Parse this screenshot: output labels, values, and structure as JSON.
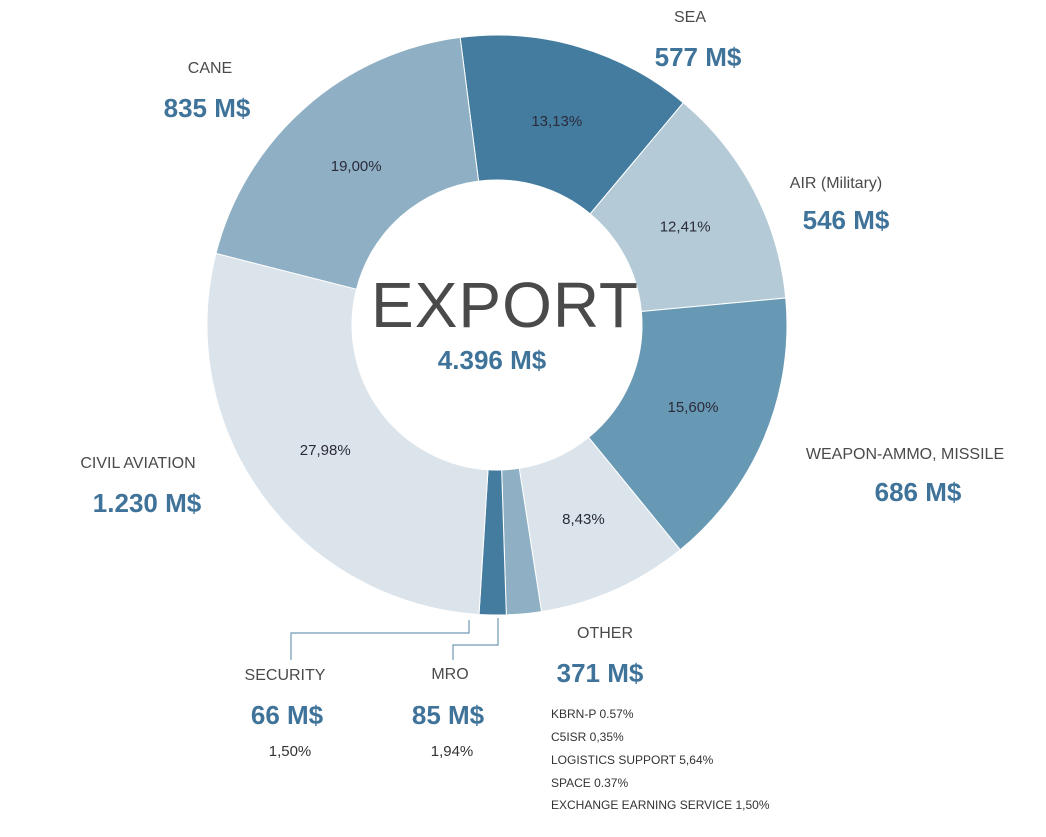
{
  "chart_data": {
    "type": "pie",
    "center_title": "EXPORT",
    "center_value": "4.396 M$",
    "slices": [
      {
        "name": "SEA",
        "value_label": "577 M$",
        "pct_label": "13,13%",
        "percent": 13.13,
        "color": "#447c9f"
      },
      {
        "name": "AIR (Military)",
        "value_label": "546 M$",
        "pct_label": "12,41%",
        "percent": 12.41,
        "color": "#b4cbd7"
      },
      {
        "name": "WEAPON-AMMO, MISSILE",
        "value_label": "686 M$",
        "pct_label": "15,60%",
        "percent": 15.6,
        "color": "#6899b4"
      },
      {
        "name": "OTHER",
        "value_label": "371 M$",
        "pct_label": "8,43%",
        "percent": 8.43,
        "color": "#dbe4eb"
      },
      {
        "name": "MRO",
        "value_label": "85 M$",
        "pct_label": "1,94%",
        "percent": 1.94,
        "color": "#8fb0c4"
      },
      {
        "name": "SECURITY",
        "value_label": "66 M$",
        "pct_label": "1,50%",
        "percent": 1.5,
        "color": "#447c9f"
      },
      {
        "name": "CIVIL AVIATION",
        "value_label": "1.230 M$",
        "pct_label": "27,98%",
        "percent": 27.98,
        "color": "#dbe4eb"
      },
      {
        "name": "CANE",
        "value_label": "835 M$",
        "pct_label": "19,00%",
        "percent": 19.0,
        "color": "#8fb0c4"
      }
    ],
    "other_breakdown": [
      "KBRN-P 0.57%",
      "C5ISR 0,35%",
      "LOGISTICS SUPPORT 5,64%",
      "SPACE 0.37%",
      "EXCHANGE EARNING SERVICE 1,50%"
    ]
  }
}
